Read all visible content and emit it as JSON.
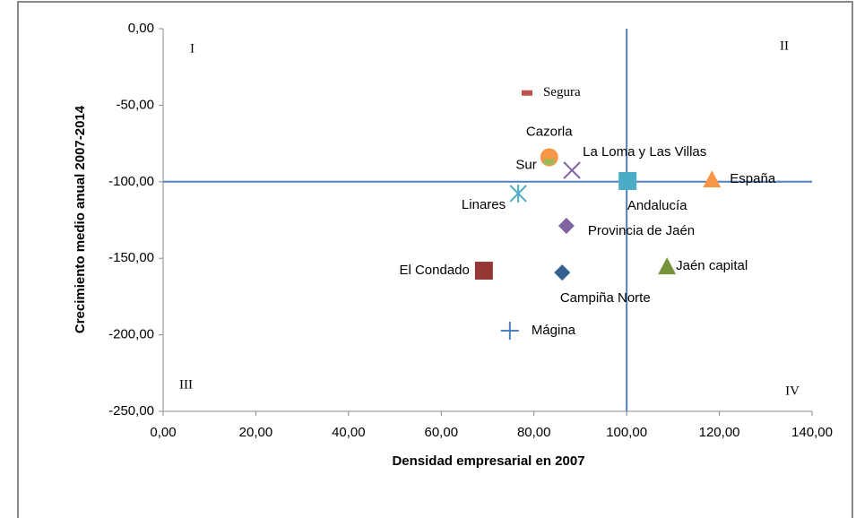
{
  "chart_data": {
    "type": "scatter",
    "x_label": "Densidad empresarial en 2007",
    "y_label": "Crecimiento medio anual 2007-2014",
    "xlim": [
      0,
      140
    ],
    "xticks": [
      {
        "value": 0,
        "label": "0,00"
      },
      {
        "value": 20,
        "label": "20,00"
      },
      {
        "value": 40,
        "label": "40,00"
      },
      {
        "value": 60,
        "label": "60,00"
      },
      {
        "value": 80,
        "label": "80,00"
      },
      {
        "value": 100,
        "label": "100,00"
      },
      {
        "value": 120,
        "label": "120,00"
      },
      {
        "value": 140,
        "label": "140,00"
      }
    ],
    "ylim": [
      -250,
      0
    ],
    "yticks": [
      {
        "value": 0,
        "label": "0,00"
      },
      {
        "value": -50,
        "label": "-50,00"
      },
      {
        "value": -100,
        "label": "-100,00"
      },
      {
        "value": -150,
        "label": "-150,00"
      },
      {
        "value": -200,
        "label": "-200,00"
      },
      {
        "value": -250,
        "label": "-250,00"
      }
    ],
    "reference_lines": {
      "x": 100,
      "y": -100,
      "color": "#4f81bd"
    },
    "quadrant_labels": [
      "I",
      "II",
      "III",
      "IV"
    ],
    "series": [
      {
        "name": "Segura",
        "color": "#c0504d",
        "marker": "dash",
        "x": [
          78.5
        ],
        "values": [
          -42
        ]
      },
      {
        "name": "Cazorla",
        "color": "#f79646",
        "marker": "circle",
        "x": [
          83.3
        ],
        "values": [
          -84
        ]
      },
      {
        "name": "Sur",
        "color": "#9bbb59",
        "marker": "dash",
        "x": [
          83.3
        ],
        "values": [
          -87
        ]
      },
      {
        "name": "La Loma y Las Villas",
        "color": "#8064a2",
        "marker": "x",
        "x": [
          88.2
        ],
        "values": [
          -92.5
        ]
      },
      {
        "name": "Andalucía",
        "color": "#4bacc6",
        "marker": "square",
        "x": [
          100.2
        ],
        "values": [
          -99.5
        ]
      },
      {
        "name": "España",
        "color": "#f79646",
        "marker": "triangle",
        "x": [
          118.4
        ],
        "values": [
          -98.4
        ]
      },
      {
        "name": "Linares",
        "color": "#4bacc6",
        "marker": "star",
        "x": [
          76.6
        ],
        "values": [
          -107.7
        ]
      },
      {
        "name": "Provincia de Jaén",
        "color": "#8064a2",
        "marker": "diamond",
        "x": [
          87
        ],
        "values": [
          -128.8
        ]
      },
      {
        "name": "Jaén capital",
        "color": "#77933c",
        "marker": "triangle",
        "x": [
          108.7
        ],
        "values": [
          -155.2
        ]
      },
      {
        "name": "El Condado",
        "color": "#953735",
        "marker": "square",
        "x": [
          69.2
        ],
        "values": [
          -158.1
        ]
      },
      {
        "name": "Campiña Norte",
        "color": "#376092",
        "marker": "diamond",
        "x": [
          86.1
        ],
        "values": [
          -159.3
        ]
      },
      {
        "name": "Mágina",
        "color": "#4f81bd",
        "marker": "plus",
        "x": [
          74.8
        ],
        "values": [
          -197.3
        ]
      }
    ]
  }
}
